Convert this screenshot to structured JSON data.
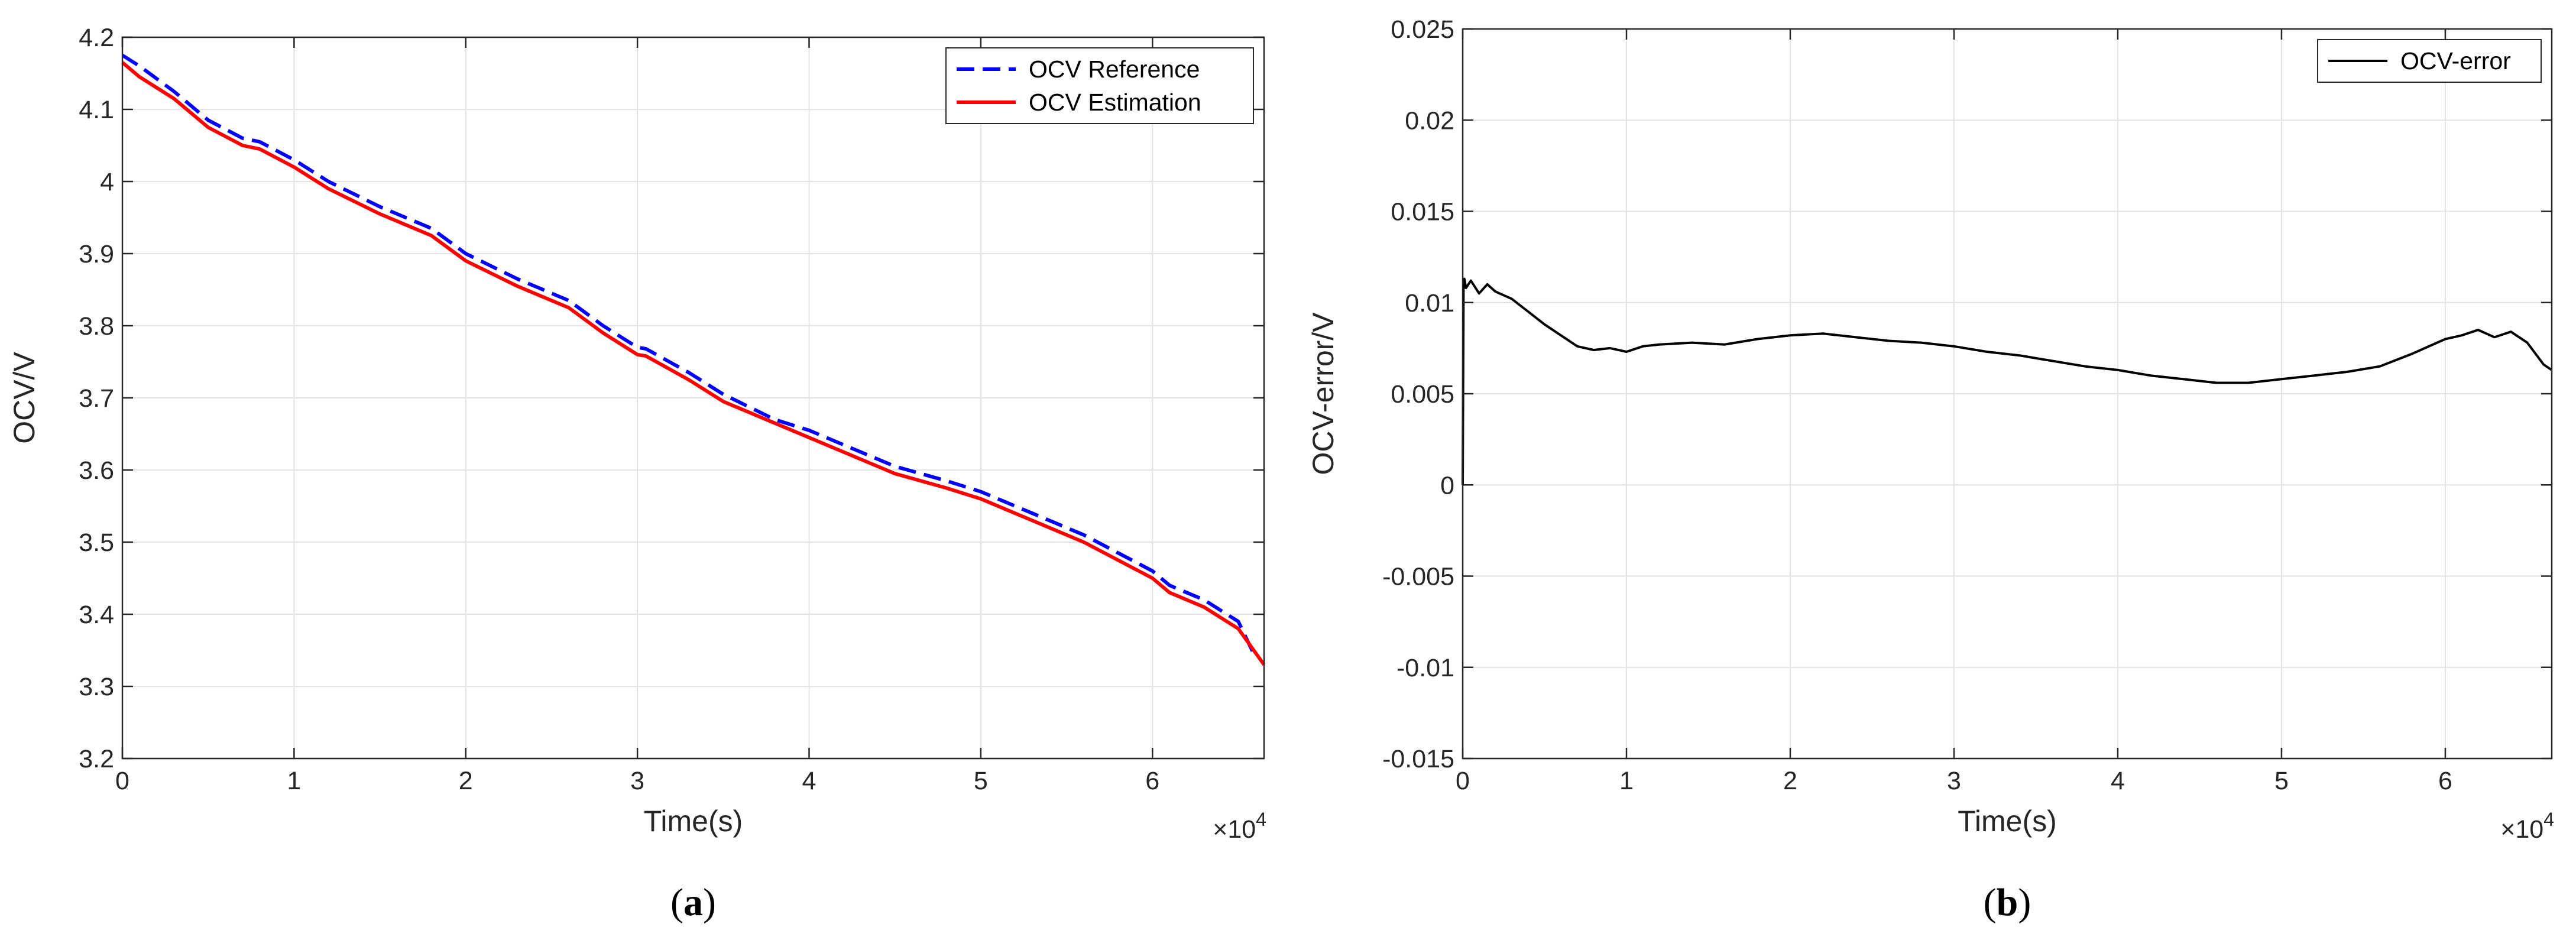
{
  "chart_data": [
    {
      "type": "line",
      "panel": "a",
      "caption": {
        "open": "(",
        "letter": "a",
        "close": ")"
      },
      "xlabel": "Time(s)",
      "ylabel": "OCV/V",
      "x_multiplier": {
        "prefix": "×10",
        "exp": "4"
      },
      "xlim": [
        0,
        6.65
      ],
      "ylim": [
        3.2,
        4.2
      ],
      "xticks": [
        0,
        1,
        2,
        3,
        4,
        5,
        6
      ],
      "xtick_labels": [
        "0",
        "1",
        "2",
        "3",
        "4",
        "5",
        "6"
      ],
      "yticks": [
        3.2,
        3.3,
        3.4,
        3.5,
        3.6,
        3.7,
        3.8,
        3.9,
        4.0,
        4.1,
        4.2
      ],
      "ytick_labels": [
        "3.2",
        "3.3",
        "3.4",
        "3.5",
        "3.6",
        "3.7",
        "3.8",
        "3.9",
        "4",
        "4.1",
        "4.2"
      ],
      "grid": true,
      "legend_position": "top-right",
      "series": [
        {
          "name": "OCV Reference",
          "color": "#0000ff",
          "style": "dashed",
          "x": [
            0,
            0.1,
            0.3,
            0.5,
            0.7,
            0.8,
            1.0,
            1.2,
            1.5,
            1.8,
            2.0,
            2.3,
            2.6,
            2.8,
            3.0,
            3.05,
            3.3,
            3.5,
            3.8,
            4.0,
            4.2,
            4.5,
            4.8,
            5.0,
            5.3,
            5.6,
            5.8,
            6.0,
            6.1,
            6.3,
            6.5,
            6.6
          ],
          "y": [
            4.175,
            4.16,
            4.125,
            4.085,
            4.06,
            4.055,
            4.03,
            4.0,
            3.965,
            3.935,
            3.9,
            3.865,
            3.835,
            3.8,
            3.77,
            3.768,
            3.735,
            3.705,
            3.67,
            3.655,
            3.635,
            3.605,
            3.585,
            3.57,
            3.54,
            3.51,
            3.485,
            3.46,
            3.44,
            3.42,
            3.39,
            3.34
          ]
        },
        {
          "name": "OCV Estimation",
          "color": "#ff0000",
          "style": "solid",
          "x": [
            0,
            0.1,
            0.3,
            0.5,
            0.7,
            0.8,
            1.0,
            1.2,
            1.5,
            1.8,
            2.0,
            2.3,
            2.6,
            2.8,
            3.0,
            3.05,
            3.3,
            3.5,
            3.8,
            4.0,
            4.2,
            4.5,
            4.8,
            5.0,
            5.3,
            5.6,
            5.8,
            6.0,
            6.1,
            6.3,
            6.5,
            6.65
          ],
          "y": [
            4.165,
            4.145,
            4.115,
            4.075,
            4.05,
            4.045,
            4.02,
            3.99,
            3.955,
            3.925,
            3.89,
            3.855,
            3.825,
            3.79,
            3.76,
            3.758,
            3.725,
            3.695,
            3.665,
            3.645,
            3.625,
            3.595,
            3.575,
            3.56,
            3.53,
            3.5,
            3.475,
            3.45,
            3.43,
            3.41,
            3.38,
            3.33
          ]
        }
      ]
    },
    {
      "type": "line",
      "panel": "b",
      "caption": {
        "open": "(",
        "letter": "b",
        "close": ")"
      },
      "xlabel": "Time(s)",
      "ylabel": "OCV-error/V",
      "x_multiplier": {
        "prefix": "×10",
        "exp": "4"
      },
      "xlim": [
        0,
        6.65
      ],
      "ylim": [
        -0.015,
        0.025
      ],
      "xticks": [
        0,
        1,
        2,
        3,
        4,
        5,
        6
      ],
      "xtick_labels": [
        "0",
        "1",
        "2",
        "3",
        "4",
        "5",
        "6"
      ],
      "yticks": [
        -0.015,
        -0.01,
        -0.005,
        0,
        0.005,
        0.01,
        0.015,
        0.02,
        0.025
      ],
      "ytick_labels": [
        "-0.015",
        "-0.01",
        "-0.005",
        "0",
        "0.005",
        "0.01",
        "0.015",
        "0.02",
        "0.025"
      ],
      "grid": true,
      "legend_position": "top-right",
      "series": [
        {
          "name": "OCV-error",
          "color": "#000000",
          "style": "solid",
          "x": [
            0,
            0.005,
            0.01,
            0.02,
            0.05,
            0.1,
            0.15,
            0.2,
            0.3,
            0.4,
            0.5,
            0.6,
            0.7,
            0.8,
            0.9,
            1.0,
            1.1,
            1.2,
            1.4,
            1.6,
            1.8,
            2.0,
            2.2,
            2.4,
            2.6,
            2.8,
            3.0,
            3.2,
            3.4,
            3.6,
            3.8,
            4.0,
            4.2,
            4.4,
            4.6,
            4.8,
            5.0,
            5.2,
            5.4,
            5.6,
            5.8,
            6.0,
            6.1,
            6.2,
            6.3,
            6.4,
            6.5,
            6.6,
            6.65
          ],
          "y": [
            0.0,
            0.011,
            0.0113,
            0.0108,
            0.0112,
            0.0105,
            0.011,
            0.0106,
            0.0102,
            0.0095,
            0.0088,
            0.0082,
            0.0076,
            0.0074,
            0.0075,
            0.0073,
            0.0076,
            0.0077,
            0.0078,
            0.0077,
            0.008,
            0.0082,
            0.0083,
            0.0081,
            0.0079,
            0.0078,
            0.0076,
            0.0073,
            0.0071,
            0.0068,
            0.0065,
            0.0063,
            0.006,
            0.0058,
            0.0056,
            0.0056,
            0.0058,
            0.006,
            0.0062,
            0.0065,
            0.0072,
            0.008,
            0.0082,
            0.0085,
            0.0081,
            0.0084,
            0.0078,
            0.0066,
            0.0063
          ]
        }
      ]
    }
  ]
}
